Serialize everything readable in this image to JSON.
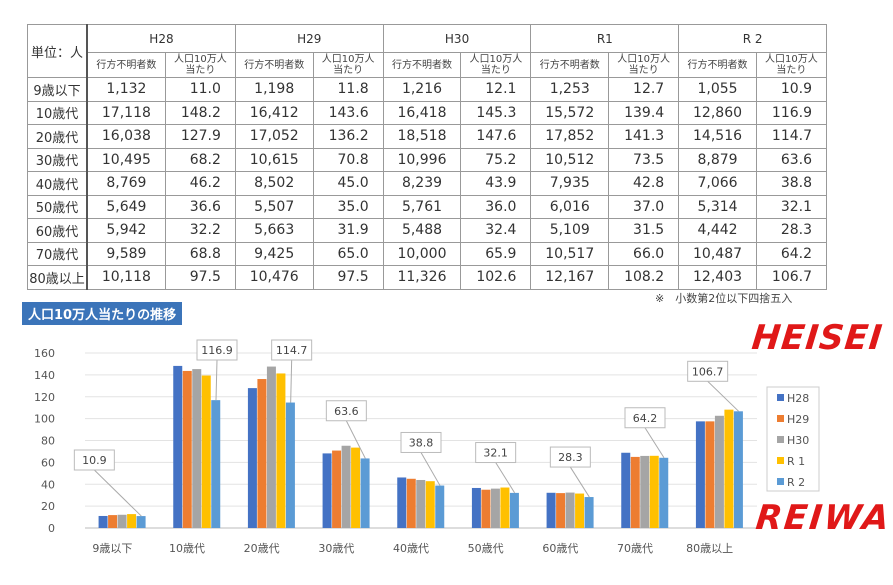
{
  "table": {
    "unit_label": "単位：人",
    "years": [
      "H28",
      "H29",
      "H30",
      "R1",
      "R 2"
    ],
    "sub_headers": [
      "行方不明者数",
      "人口10万人\n当たり"
    ],
    "rows": [
      {
        "age": "9歳以下",
        "values": [
          "1,132",
          "11.0",
          "1,198",
          "11.8",
          "1,216",
          "12.1",
          "1,253",
          "12.7",
          "1,055",
          "10.9"
        ]
      },
      {
        "age": "10歳代",
        "values": [
          "17,118",
          "148.2",
          "16,412",
          "143.6",
          "16,418",
          "145.3",
          "15,572",
          "139.4",
          "12,860",
          "116.9"
        ]
      },
      {
        "age": "20歳代",
        "values": [
          "16,038",
          "127.9",
          "17,052",
          "136.2",
          "18,518",
          "147.6",
          "17,852",
          "141.3",
          "14,516",
          "114.7"
        ]
      },
      {
        "age": "30歳代",
        "values": [
          "10,495",
          "68.2",
          "10,615",
          "70.8",
          "10,996",
          "75.2",
          "10,512",
          "73.5",
          "8,879",
          "63.6"
        ]
      },
      {
        "age": "40歳代",
        "values": [
          "8,769",
          "46.2",
          "8,502",
          "45.0",
          "8,239",
          "43.9",
          "7,935",
          "42.8",
          "7,066",
          "38.8"
        ]
      },
      {
        "age": "50歳代",
        "values": [
          "5,649",
          "36.6",
          "5,507",
          "35.0",
          "5,761",
          "36.0",
          "6,016",
          "37.0",
          "5,314",
          "32.1"
        ]
      },
      {
        "age": "60歳代",
        "values": [
          "5,942",
          "32.2",
          "5,663",
          "31.9",
          "5,488",
          "32.4",
          "5,109",
          "31.5",
          "4,442",
          "28.3"
        ]
      },
      {
        "age": "70歳代",
        "values": [
          "9,589",
          "68.8",
          "9,425",
          "65.0",
          "10,000",
          "65.9",
          "10,517",
          "66.0",
          "10,487",
          "64.2"
        ]
      },
      {
        "age": "80歳以上",
        "values": [
          "10,118",
          "97.5",
          "10,476",
          "97.5",
          "11,326",
          "102.6",
          "12,167",
          "108.2",
          "12,403",
          "106.7"
        ]
      }
    ],
    "note": "※　小数第2位以下四捨五入"
  },
  "chart_title": "人口10万人当たりの推移",
  "annotations": {
    "top_right": "HEISEI",
    "bottom_right": "REIWA"
  },
  "chart_data": {
    "type": "bar",
    "categories": [
      "9歳以下",
      "10歳代",
      "20歳代",
      "30歳代",
      "40歳代",
      "50歳代",
      "60歳代",
      "70歳代",
      "80歳以上"
    ],
    "series": [
      {
        "name": "H28",
        "color": "#4472c4",
        "values": [
          11.0,
          148.2,
          127.9,
          68.2,
          46.2,
          36.6,
          32.2,
          68.8,
          97.5
        ]
      },
      {
        "name": "H29",
        "color": "#ed7d31",
        "values": [
          11.8,
          143.6,
          136.2,
          70.8,
          45.0,
          35.0,
          31.9,
          65.0,
          97.5
        ]
      },
      {
        "name": "H30",
        "color": "#a5a5a5",
        "values": [
          12.1,
          145.3,
          147.6,
          75.2,
          43.9,
          36.0,
          32.4,
          65.9,
          102.6
        ]
      },
      {
        "name": "R 1",
        "color": "#ffc000",
        "values": [
          12.7,
          139.4,
          141.3,
          73.5,
          42.8,
          37.0,
          31.5,
          66.0,
          108.2
        ]
      },
      {
        "name": "R 2",
        "color": "#5b9bd5",
        "values": [
          10.9,
          116.9,
          114.7,
          63.6,
          38.8,
          32.1,
          28.3,
          64.2,
          106.7
        ]
      }
    ],
    "data_labels_series": "R 2",
    "ylim": [
      0,
      160
    ],
    "yticks": [
      0,
      20,
      40,
      60,
      80,
      100,
      120,
      140,
      160
    ],
    "grid": true,
    "legend": "right"
  }
}
